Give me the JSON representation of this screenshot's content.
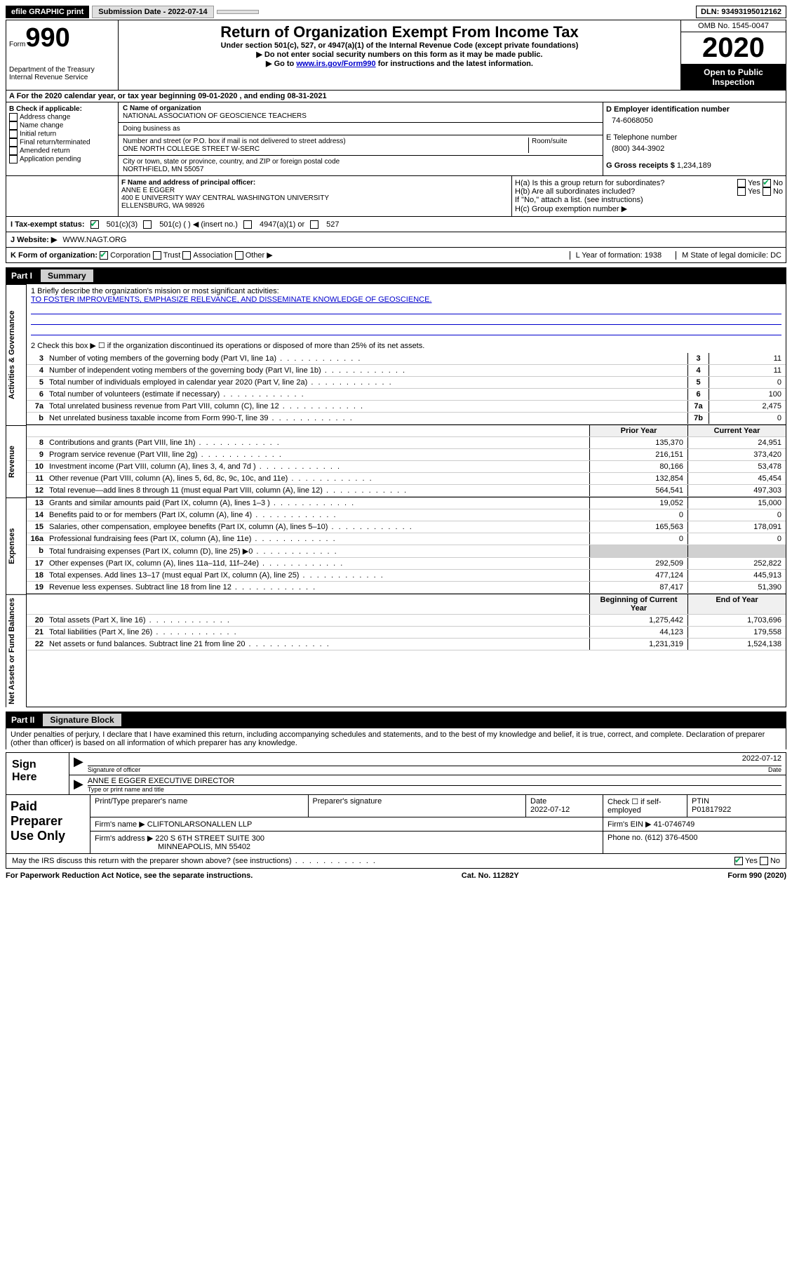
{
  "topbar": {
    "efile": "efile GRAPHIC print",
    "submission_label": "Submission Date - 2022-07-14",
    "dln": "DLN: 93493195012162"
  },
  "header": {
    "form_word": "Form",
    "form_num": "990",
    "dept1": "Department of the Treasury",
    "dept2": "Internal Revenue Service",
    "title": "Return of Organization Exempt From Income Tax",
    "subtitle": "Under section 501(c), 527, or 4947(a)(1) of the Internal Revenue Code (except private foundations)",
    "inst1": "▶ Do not enter social security numbers on this form as it may be made public.",
    "inst2_pre": "▶ Go to ",
    "inst2_link": "www.irs.gov/Form990",
    "inst2_post": " for instructions and the latest information.",
    "omb": "OMB No. 1545-0047",
    "year": "2020",
    "open": "Open to Public Inspection"
  },
  "rowA": "A For the 2020 calendar year, or tax year beginning 09-01-2020    , and ending 08-31-2021",
  "boxB": {
    "label": "B Check if applicable:",
    "opts": [
      "Address change",
      "Name change",
      "Initial return",
      "Final return/terminated",
      "Amended return",
      "Application pending"
    ]
  },
  "boxC": {
    "name_label": "C Name of organization",
    "name": "NATIONAL ASSOCIATION OF GEOSCIENCE TEACHERS",
    "dba_label": "Doing business as",
    "addr_label": "Number and street (or P.O. box if mail is not delivered to street address)",
    "room_label": "Room/suite",
    "addr": "ONE NORTH COLLEGE STREET W-SERC",
    "city_label": "City or town, state or province, country, and ZIP or foreign postal code",
    "city": "NORTHFIELD, MN  55057"
  },
  "boxD": {
    "ein_label": "D Employer identification number",
    "ein": "74-6068050",
    "phone_label": "E Telephone number",
    "phone": "(800) 344-3902",
    "gross_label": "G Gross receipts $",
    "gross": "1,234,189"
  },
  "boxF": {
    "label": "F  Name and address of principal officer:",
    "name": "ANNE E EGGER",
    "addr1": "400 E UNIVERSITY WAY CENTRAL WASHINGTON UNIVERSITY",
    "addr2": "ELLENSBURG, WA  98926"
  },
  "boxH": {
    "ha": "H(a)  Is this a group return for subordinates?",
    "hb": "H(b)  Are all subordinates included?",
    "hb_note": "If \"No,\" attach a list. (see instructions)",
    "hc": "H(c)  Group exemption number ▶"
  },
  "rowI": {
    "label": "I   Tax-exempt status:",
    "o1": "501(c)(3)",
    "o2": "501(c) (   ) ◀ (insert no.)",
    "o3": "4947(a)(1) or",
    "o4": "527"
  },
  "rowJ": {
    "label": "J   Website: ▶",
    "val": "WWW.NAGT.ORG"
  },
  "rowK": {
    "label": "K Form of organization:",
    "opts": [
      "Corporation",
      "Trust",
      "Association",
      "Other ▶"
    ],
    "L": "L Year of formation: 1938",
    "M": "M State of legal domicile: DC"
  },
  "part1": {
    "num": "Part I",
    "title": "Summary"
  },
  "mission": {
    "q": "1   Briefly describe the organization's mission or most significant activities:",
    "text": "TO FOSTER IMPROVEMENTS, EMPHASIZE RELEVANCE, AND DISSEMINATE KNOWLEDGE OF GEOSCIENCE."
  },
  "line2": "2   Check this box ▶ ☐  if the organization discontinued its operations or disposed of more than 25% of its net assets.",
  "lines_single": [
    {
      "n": "3",
      "d": "Number of voting members of the governing body (Part VI, line 1a)",
      "b": "3",
      "v": "11"
    },
    {
      "n": "4",
      "d": "Number of independent voting members of the governing body (Part VI, line 1b)",
      "b": "4",
      "v": "11"
    },
    {
      "n": "5",
      "d": "Total number of individuals employed in calendar year 2020 (Part V, line 2a)",
      "b": "5",
      "v": "0"
    },
    {
      "n": "6",
      "d": "Total number of volunteers (estimate if necessary)",
      "b": "6",
      "v": "100"
    },
    {
      "n": "7a",
      "d": "Total unrelated business revenue from Part VIII, column (C), line 12",
      "b": "7a",
      "v": "2,475"
    },
    {
      "n": "b",
      "d": "Net unrelated business taxable income from Form 990-T, line 39",
      "b": "7b",
      "v": "0"
    }
  ],
  "col_headers": {
    "c1": "Prior Year",
    "c2": "Current Year"
  },
  "revenue": [
    {
      "n": "8",
      "d": "Contributions and grants (Part VIII, line 1h)",
      "c1": "135,370",
      "c2": "24,951"
    },
    {
      "n": "9",
      "d": "Program service revenue (Part VIII, line 2g)",
      "c1": "216,151",
      "c2": "373,420"
    },
    {
      "n": "10",
      "d": "Investment income (Part VIII, column (A), lines 3, 4, and 7d )",
      "c1": "80,166",
      "c2": "53,478"
    },
    {
      "n": "11",
      "d": "Other revenue (Part VIII, column (A), lines 5, 6d, 8c, 9c, 10c, and 11e)",
      "c1": "132,854",
      "c2": "45,454"
    },
    {
      "n": "12",
      "d": "Total revenue—add lines 8 through 11 (must equal Part VIII, column (A), line 12)",
      "c1": "564,541",
      "c2": "497,303"
    }
  ],
  "expenses": [
    {
      "n": "13",
      "d": "Grants and similar amounts paid (Part IX, column (A), lines 1–3 )",
      "c1": "19,052",
      "c2": "15,000"
    },
    {
      "n": "14",
      "d": "Benefits paid to or for members (Part IX, column (A), line 4)",
      "c1": "0",
      "c2": "0"
    },
    {
      "n": "15",
      "d": "Salaries, other compensation, employee benefits (Part IX, column (A), lines 5–10)",
      "c1": "165,563",
      "c2": "178,091"
    },
    {
      "n": "16a",
      "d": "Professional fundraising fees (Part IX, column (A), line 11e)",
      "c1": "0",
      "c2": "0"
    },
    {
      "n": "b",
      "d": "Total fundraising expenses (Part IX, column (D), line 25) ▶0",
      "c1": "",
      "c2": "",
      "shaded": true
    },
    {
      "n": "17",
      "d": "Other expenses (Part IX, column (A), lines 11a–11d, 11f–24e)",
      "c1": "292,509",
      "c2": "252,822"
    },
    {
      "n": "18",
      "d": "Total expenses. Add lines 13–17 (must equal Part IX, column (A), line 25)",
      "c1": "477,124",
      "c2": "445,913"
    },
    {
      "n": "19",
      "d": "Revenue less expenses. Subtract line 18 from line 12",
      "c1": "87,417",
      "c2": "51,390"
    }
  ],
  "col_headers2": {
    "c1": "Beginning of Current Year",
    "c2": "End of Year"
  },
  "netassets": [
    {
      "n": "20",
      "d": "Total assets (Part X, line 16)",
      "c1": "1,275,442",
      "c2": "1,703,696"
    },
    {
      "n": "21",
      "d": "Total liabilities (Part X, line 26)",
      "c1": "44,123",
      "c2": "179,558"
    },
    {
      "n": "22",
      "d": "Net assets or fund balances. Subtract line 21 from line 20",
      "c1": "1,231,319",
      "c2": "1,524,138"
    }
  ],
  "vert": {
    "gov": "Activities & Governance",
    "rev": "Revenue",
    "exp": "Expenses",
    "net": "Net Assets or Fund Balances"
  },
  "part2": {
    "num": "Part II",
    "title": "Signature Block"
  },
  "penalties": "Under penalties of perjury, I declare that I have examined this return, including accompanying schedules and statements, and to the best of my knowledge and belief, it is true, correct, and complete. Declaration of preparer (other than officer) is based on all information of which preparer has any knowledge.",
  "sign": {
    "left": "Sign Here",
    "sig_label": "Signature of officer",
    "date_label": "Date",
    "date": "2022-07-12",
    "name": "ANNE E EGGER  EXECUTIVE DIRECTOR",
    "name_label": "Type or print name and title"
  },
  "prep": {
    "left": "Paid Preparer Use Only",
    "h1": "Print/Type preparer's name",
    "h2": "Preparer's signature",
    "h3": "Date",
    "h3v": "2022-07-12",
    "h4": "Check ☐ if self-employed",
    "h5": "PTIN",
    "h5v": "P01817922",
    "firm_label": "Firm's name    ▶",
    "firm": "CLIFTONLARSONALLEN LLP",
    "ein_label": "Firm's EIN ▶",
    "ein": "41-0746749",
    "addr_label": "Firm's address ▶",
    "addr": "220 S 6TH STREET SUITE 300",
    "city": "MINNEAPOLIS, MN  55402",
    "phone_label": "Phone no.",
    "phone": "(612) 376-4500"
  },
  "discuss": "May the IRS discuss this return with the preparer shown above? (see instructions)",
  "footer": {
    "left": "For Paperwork Reduction Act Notice, see the separate instructions.",
    "mid": "Cat. No. 11282Y",
    "right": "Form 990 (2020)"
  }
}
